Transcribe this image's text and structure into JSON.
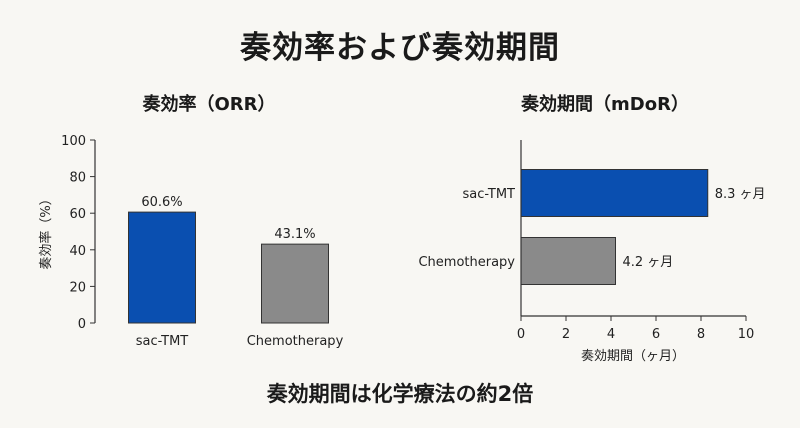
{
  "title": "奏効率および奏効期間",
  "footer_note": "奏効期間は化学療法の約2倍",
  "chart_data": [
    {
      "type": "bar",
      "title": "奏効率（ORR）",
      "categories": [
        "sac-TMT",
        "Chemotherapy"
      ],
      "values": [
        60.6,
        43.1
      ],
      "data_labels": [
        "60.6%",
        "43.1%"
      ],
      "ylabel": "奏効率（%）",
      "xlabel": "",
      "ylim": [
        0,
        100
      ],
      "yticks": [
        0,
        20,
        40,
        60,
        80,
        100
      ],
      "colors": [
        "#0a4fb0",
        "#8a8a8a"
      ],
      "grid": false
    },
    {
      "type": "bar",
      "orientation": "horizontal",
      "title": "奏効期間（mDoR）",
      "categories": [
        "sac-TMT",
        "Chemotherapy"
      ],
      "values": [
        8.3,
        4.2
      ],
      "data_labels": [
        "8.3 ヶ月",
        "4.2 ヶ月"
      ],
      "xlabel": "奏効期間（ヶ月）",
      "ylabel": "",
      "xlim": [
        0,
        10
      ],
      "xticks": [
        0,
        2,
        4,
        6,
        8,
        10
      ],
      "colors": [
        "#0a4fb0",
        "#8a8a8a"
      ],
      "grid": false
    }
  ]
}
